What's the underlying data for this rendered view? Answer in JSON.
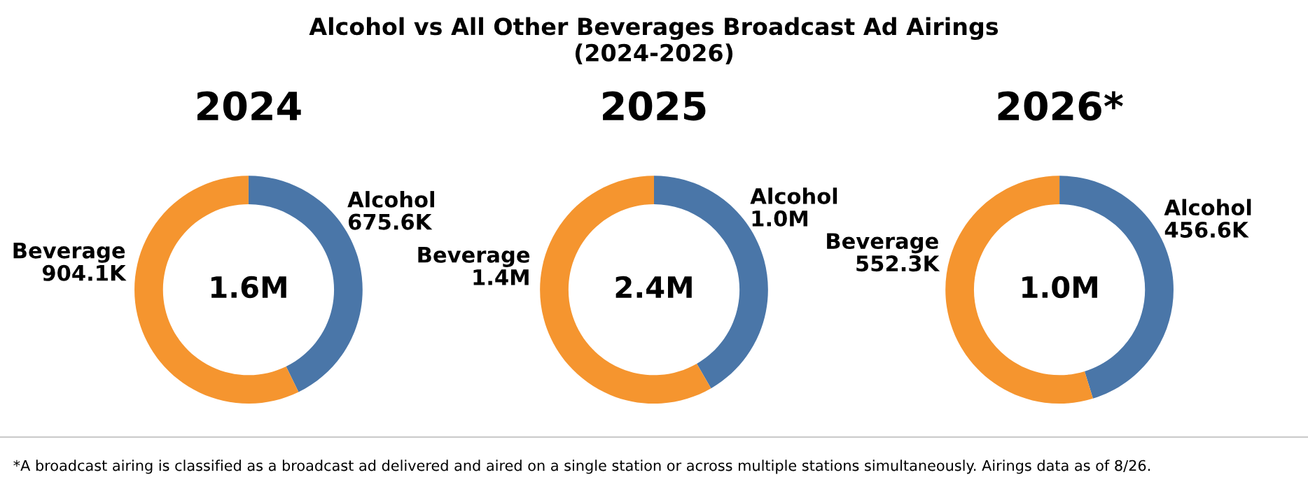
{
  "chart_data": [
    {
      "type": "donut",
      "title": "2024",
      "categories": [
        "Alcohol",
        "Beverage"
      ],
      "values": [
        675.6,
        904.1
      ],
      "value_labels": [
        "675.6K",
        "904.1K"
      ],
      "colors": [
        "#4a76a8",
        "#f5952f"
      ],
      "annotations": [
        "1.6M",
        "Alcohol vs All Other Beverages Broadcast Ad Airings\n(2024-2026)",
        "*A broadcast airing is classified as a broadcast ad delivered and aired on a single station or across multiple stations simultaneously. Airings data as of 8/26."
      ]
    },
    {
      "type": "donut",
      "title": "2025",
      "categories": [
        "Alcohol",
        "Beverage"
      ],
      "values": [
        1.0,
        1.4
      ],
      "value_labels": [
        "1.0M",
        "1.4M"
      ],
      "colors": [
        "#4a76a8",
        "#f5952f"
      ],
      "annotations": [
        "2.4M"
      ]
    },
    {
      "type": "donut",
      "title": "2026*",
      "categories": [
        "Alcohol",
        "Beverage"
      ],
      "values": [
        456.6,
        552.3
      ],
      "value_labels": [
        "456.6K",
        "552.3K"
      ],
      "colors": [
        "#4a76a8",
        "#f5952f"
      ],
      "annotations": [
        "1.0M"
      ]
    }
  ]
}
